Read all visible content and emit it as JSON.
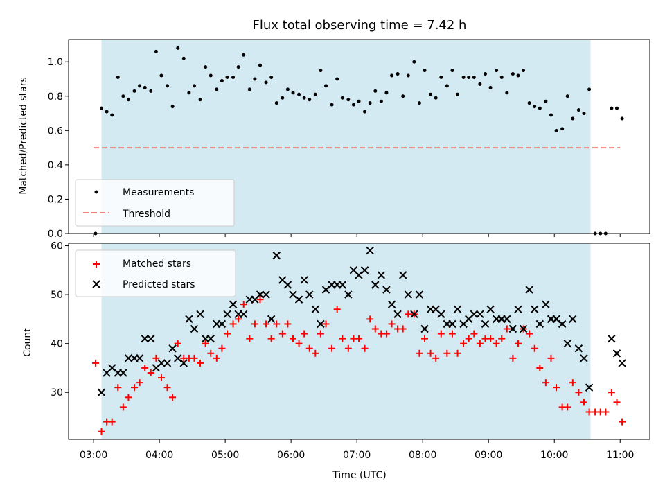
{
  "chart_data": [
    {
      "type": "scatter",
      "title": "Flux total observing time = 7.42 h",
      "ylabel": "Matched/Predicted stars",
      "xlabel": "",
      "ylim": [
        0,
        1.13
      ],
      "yticks": [
        "0.0",
        "0.2",
        "0.4",
        "0.6",
        "0.8",
        "1.0"
      ],
      "xlim": [
        2.62,
        11.45
      ],
      "xticks": [
        3,
        4,
        5,
        6,
        7,
        8,
        9,
        10,
        11
      ],
      "shaded_span": [
        3.12,
        10.55
      ],
      "threshold": {
        "value": 0.5,
        "x_range": [
          3.0,
          11.0
        ],
        "color": "#f08080"
      },
      "legend": {
        "position": "lower left",
        "entries": [
          "Measurements",
          "Threshold"
        ]
      },
      "series": [
        {
          "name": "Measurements",
          "color": "#000000",
          "x": [
            3.03,
            3.12,
            3.2,
            3.28,
            3.37,
            3.45,
            3.53,
            3.62,
            3.7,
            3.78,
            3.87,
            3.95,
            4.03,
            4.12,
            4.2,
            4.28,
            4.37,
            4.45,
            4.53,
            4.62,
            4.7,
            4.78,
            4.87,
            4.95,
            5.03,
            5.12,
            5.2,
            5.28,
            5.37,
            5.45,
            5.53,
            5.62,
            5.7,
            5.78,
            5.87,
            5.95,
            6.03,
            6.12,
            6.2,
            6.28,
            6.37,
            6.45,
            6.53,
            6.62,
            6.7,
            6.78,
            6.87,
            6.95,
            7.03,
            7.12,
            7.2,
            7.28,
            7.37,
            7.45,
            7.53,
            7.62,
            7.7,
            7.78,
            7.87,
            7.95,
            8.03,
            8.12,
            8.2,
            8.28,
            8.37,
            8.45,
            8.53,
            8.62,
            8.7,
            8.78,
            8.87,
            8.95,
            9.03,
            9.12,
            9.2,
            9.28,
            9.37,
            9.45,
            9.53,
            9.62,
            9.7,
            9.78,
            9.87,
            9.95,
            10.03,
            10.12,
            10.2,
            10.28,
            10.37,
            10.45,
            10.53,
            10.62,
            10.7,
            10.78,
            10.87,
            10.95,
            11.03
          ],
          "y": [
            0.0,
            0.73,
            0.71,
            0.69,
            0.91,
            0.8,
            0.78,
            0.83,
            0.86,
            0.85,
            0.83,
            1.06,
            0.92,
            0.86,
            0.74,
            1.08,
            1.02,
            0.82,
            0.86,
            0.78,
            0.97,
            0.92,
            0.84,
            0.89,
            0.91,
            0.91,
            0.97,
            1.04,
            0.84,
            0.9,
            0.98,
            0.88,
            0.91,
            0.76,
            0.79,
            0.84,
            0.82,
            0.81,
            0.79,
            0.78,
            0.81,
            0.95,
            0.86,
            0.75,
            0.9,
            0.79,
            0.78,
            0.75,
            0.77,
            0.71,
            0.76,
            0.83,
            0.77,
            0.82,
            0.92,
            0.93,
            0.8,
            0.92,
            1.0,
            0.76,
            0.95,
            0.81,
            0.79,
            0.91,
            0.86,
            0.95,
            0.81,
            0.91,
            0.91,
            0.91,
            0.87,
            0.93,
            0.85,
            0.95,
            0.91,
            0.82,
            0.93,
            0.92,
            0.95,
            0.76,
            0.74,
            0.73,
            0.77,
            0.69,
            0.6,
            0.61,
            0.8,
            0.67,
            0.72,
            0.7,
            0.84,
            0.0,
            0.0,
            0.0,
            0.73,
            0.73,
            0.67
          ]
        }
      ]
    },
    {
      "type": "scatter",
      "title": "",
      "ylabel": "Count",
      "xlabel": "Time (UTC)",
      "ylim": [
        20.4,
        60.5
      ],
      "yticks": [
        "30",
        "40",
        "50",
        "60"
      ],
      "xlim": [
        2.62,
        11.45
      ],
      "xticks": [
        3,
        4,
        5,
        6,
        7,
        8,
        9,
        10,
        11
      ],
      "xticklabels": [
        "03:00",
        "04:00",
        "05:00",
        "06:00",
        "07:00",
        "08:00",
        "09:00",
        "10:00",
        "11:00"
      ],
      "shaded_span": [
        3.12,
        10.55
      ],
      "legend": {
        "position": "upper left",
        "entries": [
          "Matched stars",
          "Predicted stars"
        ]
      },
      "series": [
        {
          "name": "Matched stars",
          "marker": "plus",
          "color": "#ff0000",
          "x": [
            3.03,
            3.12,
            3.2,
            3.28,
            3.37,
            3.45,
            3.53,
            3.62,
            3.7,
            3.78,
            3.87,
            3.95,
            4.03,
            4.12,
            4.2,
            4.28,
            4.37,
            4.45,
            4.53,
            4.62,
            4.7,
            4.78,
            4.87,
            4.95,
            5.03,
            5.12,
            5.2,
            5.28,
            5.37,
            5.45,
            5.53,
            5.62,
            5.7,
            5.78,
            5.87,
            5.95,
            6.03,
            6.12,
            6.2,
            6.28,
            6.37,
            6.45,
            6.53,
            6.62,
            6.7,
            6.78,
            6.87,
            6.95,
            7.03,
            7.12,
            7.2,
            7.28,
            7.37,
            7.45,
            7.53,
            7.62,
            7.7,
            7.78,
            7.87,
            7.95,
            8.03,
            8.12,
            8.2,
            8.28,
            8.37,
            8.45,
            8.53,
            8.62,
            8.7,
            8.78,
            8.87,
            8.95,
            9.03,
            9.12,
            9.2,
            9.28,
            9.37,
            9.45,
            9.53,
            9.62,
            9.7,
            9.78,
            9.87,
            9.95,
            10.03,
            10.12,
            10.2,
            10.28,
            10.37,
            10.45,
            10.53,
            10.62,
            10.7,
            10.78,
            10.87,
            10.95,
            11.03
          ],
          "y": [
            36,
            22,
            24,
            24,
            31,
            27,
            29,
            31,
            32,
            35,
            34,
            37,
            33,
            31,
            29,
            40,
            37,
            37,
            37,
            36,
            40,
            38,
            37,
            39,
            42,
            44,
            45,
            48,
            41,
            44,
            49,
            44,
            41,
            44,
            42,
            44,
            41,
            40,
            42,
            39,
            38,
            42,
            44,
            39,
            47,
            41,
            39,
            41,
            41,
            39,
            45,
            43,
            42,
            42,
            44,
            43,
            43,
            46,
            46,
            38,
            41,
            38,
            37,
            42,
            38,
            42,
            38,
            40,
            41,
            42,
            40,
            41,
            41,
            40,
            41,
            43,
            37,
            40,
            43,
            42,
            39,
            35,
            32,
            37,
            31,
            27,
            27,
            32,
            30,
            28,
            26,
            26,
            26,
            26,
            30,
            28,
            24
          ]
        },
        {
          "name": "Predicted stars",
          "marker": "x",
          "color": "#000000",
          "x": [
            3.12,
            3.2,
            3.28,
            3.37,
            3.45,
            3.53,
            3.62,
            3.7,
            3.78,
            3.87,
            3.95,
            4.03,
            4.12,
            4.2,
            4.28,
            4.37,
            4.45,
            4.53,
            4.62,
            4.7,
            4.78,
            4.87,
            4.95,
            5.03,
            5.12,
            5.2,
            5.28,
            5.37,
            5.45,
            5.53,
            5.62,
            5.7,
            5.78,
            5.87,
            5.95,
            6.03,
            6.12,
            6.2,
            6.28,
            6.37,
            6.45,
            6.53,
            6.62,
            6.7,
            6.78,
            6.87,
            6.95,
            7.03,
            7.12,
            7.2,
            7.28,
            7.37,
            7.45,
            7.53,
            7.62,
            7.7,
            7.78,
            7.87,
            7.95,
            8.03,
            8.12,
            8.2,
            8.28,
            8.37,
            8.45,
            8.53,
            8.62,
            8.7,
            8.78,
            8.87,
            8.95,
            9.03,
            9.12,
            9.2,
            9.28,
            9.37,
            9.45,
            9.53,
            9.62,
            9.7,
            9.78,
            9.87,
            9.95,
            10.03,
            10.12,
            10.2,
            10.28,
            10.37,
            10.45,
            10.53,
            10.87,
            10.95,
            11.03
          ],
          "y": [
            30,
            34,
            35,
            34,
            34,
            37,
            37,
            37,
            41,
            41,
            35,
            36,
            36,
            39,
            37,
            36,
            45,
            43,
            46,
            41,
            41,
            44,
            44,
            46,
            48,
            46,
            46,
            49,
            49,
            50,
            50,
            45,
            58,
            53,
            52,
            50,
            49,
            53,
            50,
            47,
            44,
            51,
            52,
            52,
            52,
            50,
            55,
            54,
            55,
            59,
            52,
            54,
            51,
            48,
            46,
            54,
            50,
            46,
            50,
            43,
            47,
            47,
            46,
            44,
            44,
            47,
            44,
            45,
            46,
            46,
            44,
            47,
            45,
            45,
            45,
            43,
            47,
            43,
            51,
            47,
            44,
            48,
            45,
            45,
            44,
            40,
            45,
            39,
            37,
            31,
            41,
            38,
            36
          ]
        }
      ]
    }
  ]
}
